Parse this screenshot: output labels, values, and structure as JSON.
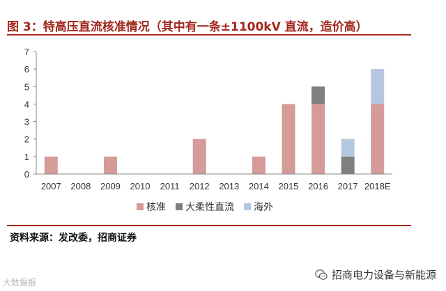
{
  "title": "图 3：特高压直流核准情况（其中有一条±1100kV 直流，造价高）",
  "source_note": "资料来源：发改委，招商证券",
  "watermark_text": "招商电力设备与新能源",
  "stamp_text": "大数据报",
  "colors": {
    "core": "#d49b98",
    "flexible": "#7f7f7f",
    "overseas": "#b4c7df",
    "accent": "#a2271c"
  },
  "chart_data": {
    "type": "bar",
    "stacked": true,
    "categories": [
      "2007",
      "2008",
      "2009",
      "2010",
      "2011",
      "2012",
      "2013",
      "2014",
      "2015",
      "2016",
      "2017",
      "2018E"
    ],
    "series": [
      {
        "name": "核准",
        "values": [
          1,
          0,
          1,
          0,
          0,
          2,
          0,
          1,
          4,
          4,
          0,
          4
        ]
      },
      {
        "name": "大柔性直流",
        "values": [
          0,
          0,
          0,
          0,
          0,
          0,
          0,
          0,
          0,
          1,
          1,
          0
        ]
      },
      {
        "name": "海外",
        "values": [
          0,
          0,
          0,
          0,
          0,
          0,
          0,
          0,
          0,
          0,
          1,
          2
        ]
      }
    ],
    "y_ticks": [
      "0",
      "1",
      "2",
      "3",
      "4",
      "5",
      "6",
      "7"
    ],
    "ylim": [
      0,
      7
    ],
    "grid": false,
    "legend_position": "bottom"
  }
}
